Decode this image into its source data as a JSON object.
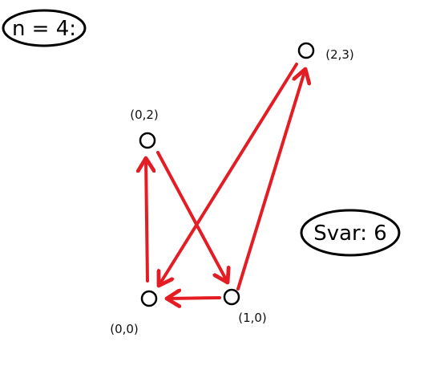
{
  "header_label": "n = 4:",
  "answer_label": "Svar: 6",
  "colors": {
    "arrow": "#e41c24",
    "node": "#000000",
    "ellipse_stroke": "#000000"
  },
  "nodes": [
    {
      "id": "n00",
      "label": "(0,0)"
    },
    {
      "id": "n10",
      "label": "(1,0)"
    },
    {
      "id": "n02",
      "label": "(0,2)"
    },
    {
      "id": "n23",
      "label": "(2,3)"
    }
  ],
  "edges": [
    {
      "from": "(0,0)",
      "to": "(0,2)"
    },
    {
      "from": "(0,2)",
      "to": "(1,0)"
    },
    {
      "from": "(1,0)",
      "to": "(0,0)"
    },
    {
      "from": "(1,0)",
      "to": "(2,3)"
    },
    {
      "from": "(2,3)",
      "to": "(0,0)"
    }
  ]
}
